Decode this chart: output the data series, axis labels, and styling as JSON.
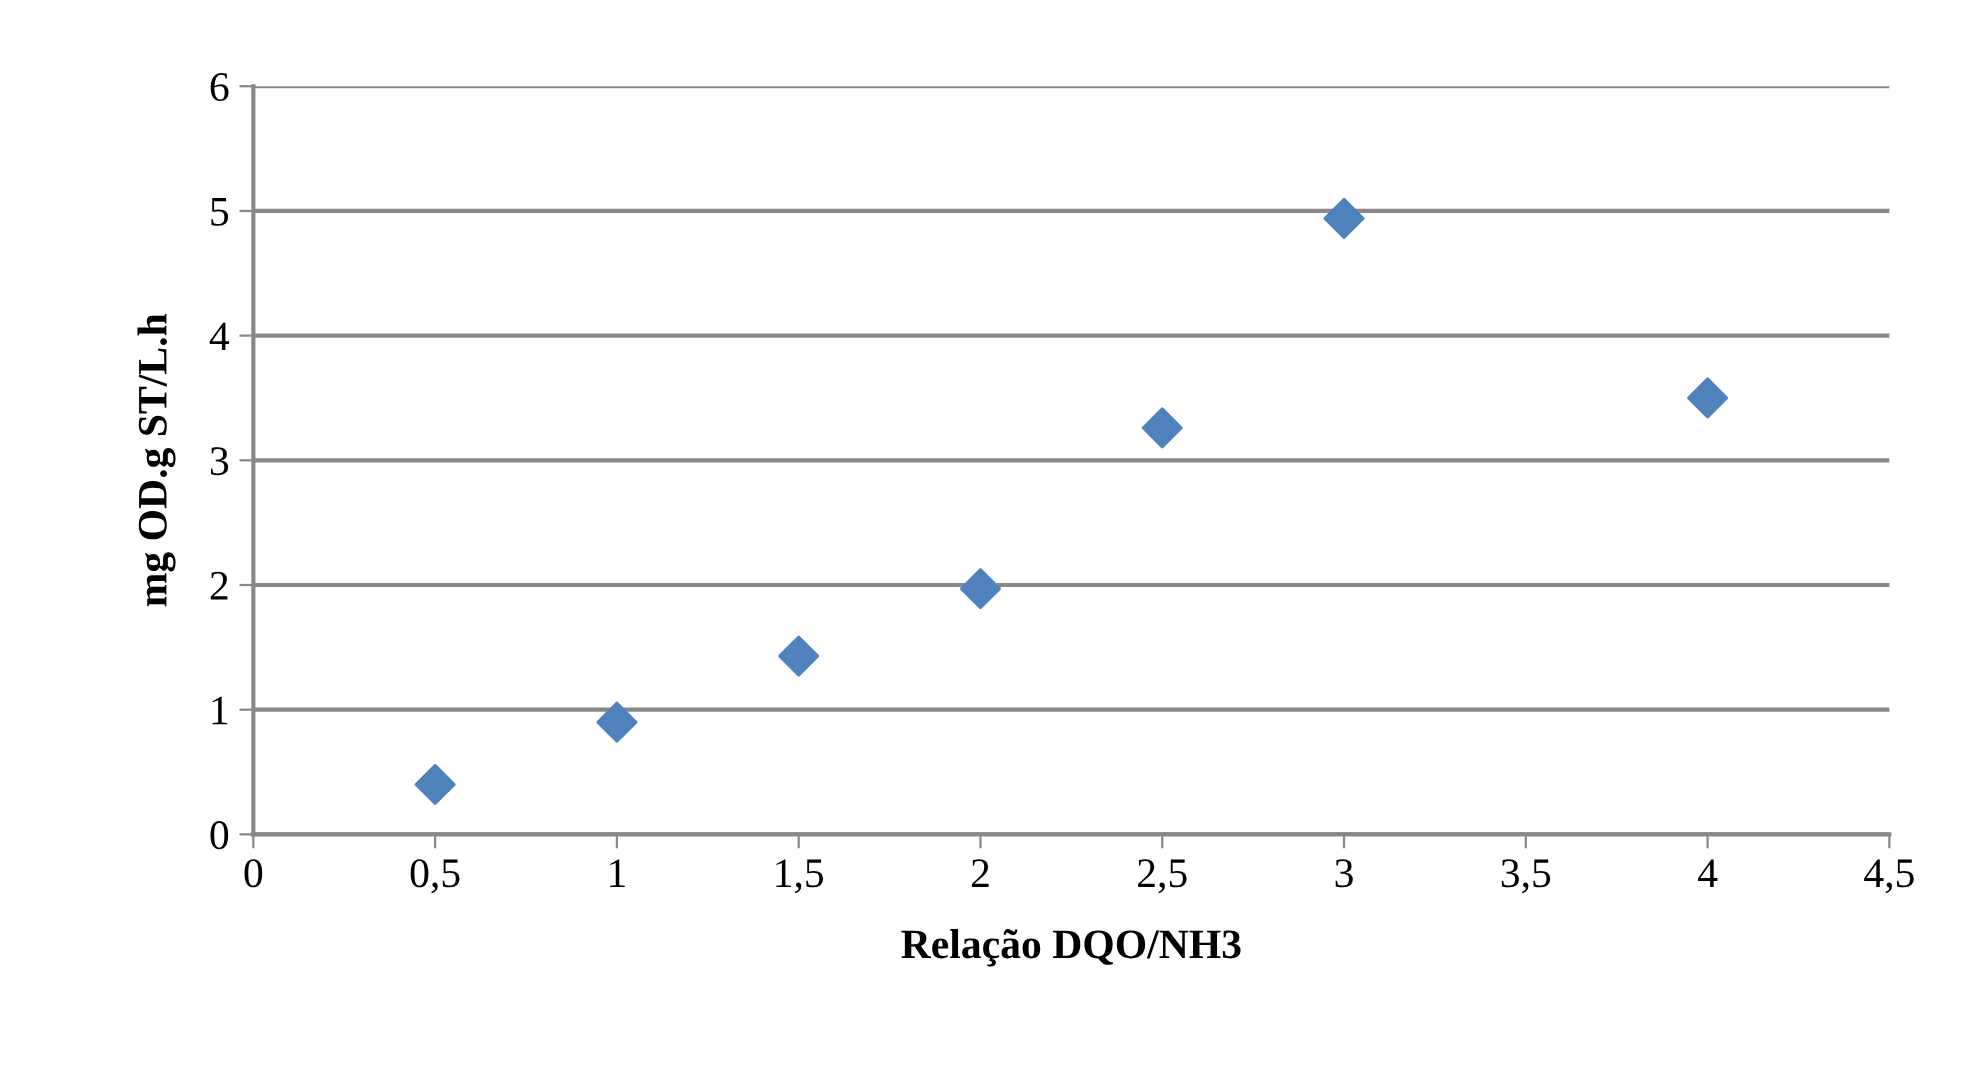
{
  "chart_data": {
    "type": "scatter",
    "xlabel": "Relação DQO/NH3",
    "ylabel": "mg OD.g ST/L.h",
    "x": [
      0.5,
      1,
      1.5,
      2,
      2.5,
      3,
      4
    ],
    "series": [
      {
        "color": "#4f81bd",
        "values": [
          0.4,
          0.9,
          1.43,
          1.97,
          3.26,
          4.94,
          3.5
        ]
      }
    ],
    "xlim": [
      0,
      4.5
    ],
    "ylim": [
      0,
      6
    ],
    "xticks": [
      0,
      {
        "value": 0.5,
        "label": "0,5"
      },
      1,
      {
        "value": 1.5,
        "label": "1,5"
      },
      2,
      {
        "value": 2.5,
        "label": "2,5"
      },
      3,
      {
        "value": 3.5,
        "label": "3,5"
      },
      4,
      {
        "value": 4.5,
        "label": "4,5"
      }
    ],
    "yticks": [
      0,
      1,
      2,
      3,
      4,
      5,
      6
    ],
    "grid": "y",
    "marker": "diamond",
    "legend": false
  }
}
